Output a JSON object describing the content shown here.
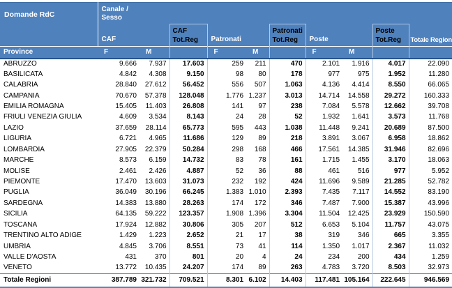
{
  "header": {
    "corner_label": "Domande RdC",
    "canale_sesso_label": "Canale /\nSesso",
    "province_label": "Province",
    "sex_labels": [
      "F",
      "M"
    ],
    "groups": [
      {
        "label": "CAF",
        "tot_label": "CAF\nTot.Reg"
      },
      {
        "label": "Patronati",
        "tot_label": "Patronati\nTot.Reg"
      },
      {
        "label": "Poste",
        "tot_label": "Poste\nTot.Reg"
      }
    ],
    "grand_total_label": "Totale Regioni"
  },
  "rows": [
    {
      "region": "ABRUZZO",
      "values": [
        "9.666",
        "7.937",
        "17.603",
        "259",
        "211",
        "470",
        "2.101",
        "1.916",
        "4.017",
        "22.090"
      ]
    },
    {
      "region": "BASILICATA",
      "values": [
        "4.842",
        "4.308",
        "9.150",
        "98",
        "80",
        "178",
        "977",
        "975",
        "1.952",
        "11.280"
      ]
    },
    {
      "region": "CALABRIA",
      "values": [
        "28.840",
        "27.612",
        "56.452",
        "556",
        "507",
        "1.063",
        "4.136",
        "4.414",
        "8.550",
        "66.065"
      ]
    },
    {
      "region": "CAMPANIA",
      "values": [
        "70.670",
        "57.378",
        "128.048",
        "1.776",
        "1.237",
        "3.013",
        "14.714",
        "14.558",
        "29.272",
        "160.333"
      ]
    },
    {
      "region": "EMILIA ROMAGNA",
      "values": [
        "15.405",
        "11.403",
        "26.808",
        "141",
        "97",
        "238",
        "7.084",
        "5.578",
        "12.662",
        "39.708"
      ]
    },
    {
      "region": "FRIULI VENEZIA GIULIA",
      "values": [
        "4.609",
        "3.534",
        "8.143",
        "24",
        "28",
        "52",
        "1.932",
        "1.641",
        "3.573",
        "11.768"
      ]
    },
    {
      "region": "LAZIO",
      "values": [
        "37.659",
        "28.114",
        "65.773",
        "595",
        "443",
        "1.038",
        "11.448",
        "9.241",
        "20.689",
        "87.500"
      ]
    },
    {
      "region": "LIGURIA",
      "values": [
        "6.721",
        "4.965",
        "11.686",
        "129",
        "89",
        "218",
        "3.891",
        "3.067",
        "6.958",
        "18.862"
      ]
    },
    {
      "region": "LOMBARDIA",
      "values": [
        "27.905",
        "22.379",
        "50.284",
        "298",
        "168",
        "466",
        "17.561",
        "14.385",
        "31.946",
        "82.696"
      ]
    },
    {
      "region": "MARCHE",
      "values": [
        "8.573",
        "6.159",
        "14.732",
        "83",
        "78",
        "161",
        "1.715",
        "1.455",
        "3.170",
        "18.063"
      ]
    },
    {
      "region": "MOLISE",
      "values": [
        "2.461",
        "2.426",
        "4.887",
        "52",
        "36",
        "88",
        "461",
        "516",
        "977",
        "5.952"
      ]
    },
    {
      "region": "PIEMONTE",
      "values": [
        "17.470",
        "13.603",
        "31.073",
        "232",
        "192",
        "424",
        "11.696",
        "9.589",
        "21.285",
        "52.782"
      ]
    },
    {
      "region": "PUGLIA",
      "values": [
        "36.049",
        "30.196",
        "66.245",
        "1.383",
        "1.010",
        "2.393",
        "7.435",
        "7.117",
        "14.552",
        "83.190"
      ]
    },
    {
      "region": "SARDEGNA",
      "values": [
        "14.383",
        "13.880",
        "28.263",
        "174",
        "172",
        "346",
        "7.487",
        "7.900",
        "15.387",
        "43.996"
      ]
    },
    {
      "region": "SICILIA",
      "values": [
        "64.135",
        "59.222",
        "123.357",
        "1.908",
        "1.396",
        "3.304",
        "11.504",
        "12.425",
        "23.929",
        "150.590"
      ]
    },
    {
      "region": "TOSCANA",
      "values": [
        "17.924",
        "12.882",
        "30.806",
        "305",
        "207",
        "512",
        "6.653",
        "5.104",
        "11.757",
        "43.075"
      ]
    },
    {
      "region": "TRENTINO ALTO ADIGE",
      "values": [
        "1.429",
        "1.223",
        "2.652",
        "21",
        "17",
        "38",
        "319",
        "346",
        "665",
        "3.355"
      ]
    },
    {
      "region": "UMBRIA",
      "values": [
        "4.845",
        "3.706",
        "8.551",
        "73",
        "41",
        "114",
        "1.350",
        "1.017",
        "2.367",
        "11.032"
      ]
    },
    {
      "region": "VALLE D'AOSTA",
      "values": [
        "431",
        "370",
        "801",
        "20",
        "4",
        "24",
        "234",
        "200",
        "434",
        "1.259"
      ]
    },
    {
      "region": "VENETO",
      "values": [
        "13.772",
        "10.435",
        "24.207",
        "174",
        "89",
        "263",
        "4.783",
        "3.720",
        "8.503",
        "32.973"
      ]
    }
  ],
  "totals_row": {
    "label": "Totale Regioni",
    "values": [
      "387.789",
      "321.732",
      "709.521",
      "8.301",
      "6.102",
      "14.403",
      "117.481",
      "105.164",
      "222.645",
      "946.569"
    ]
  },
  "colors": {
    "header_blue": "#4f81bd",
    "header_text": "#ffffff",
    "totreg_header_text": "#000000",
    "grid_blue": "#b7c9e1",
    "dark_line": "#25548f",
    "top_line": "#3d6ea5",
    "total_border": "#5b83b0",
    "body_text": "#000000",
    "bg": "#ffffff"
  }
}
